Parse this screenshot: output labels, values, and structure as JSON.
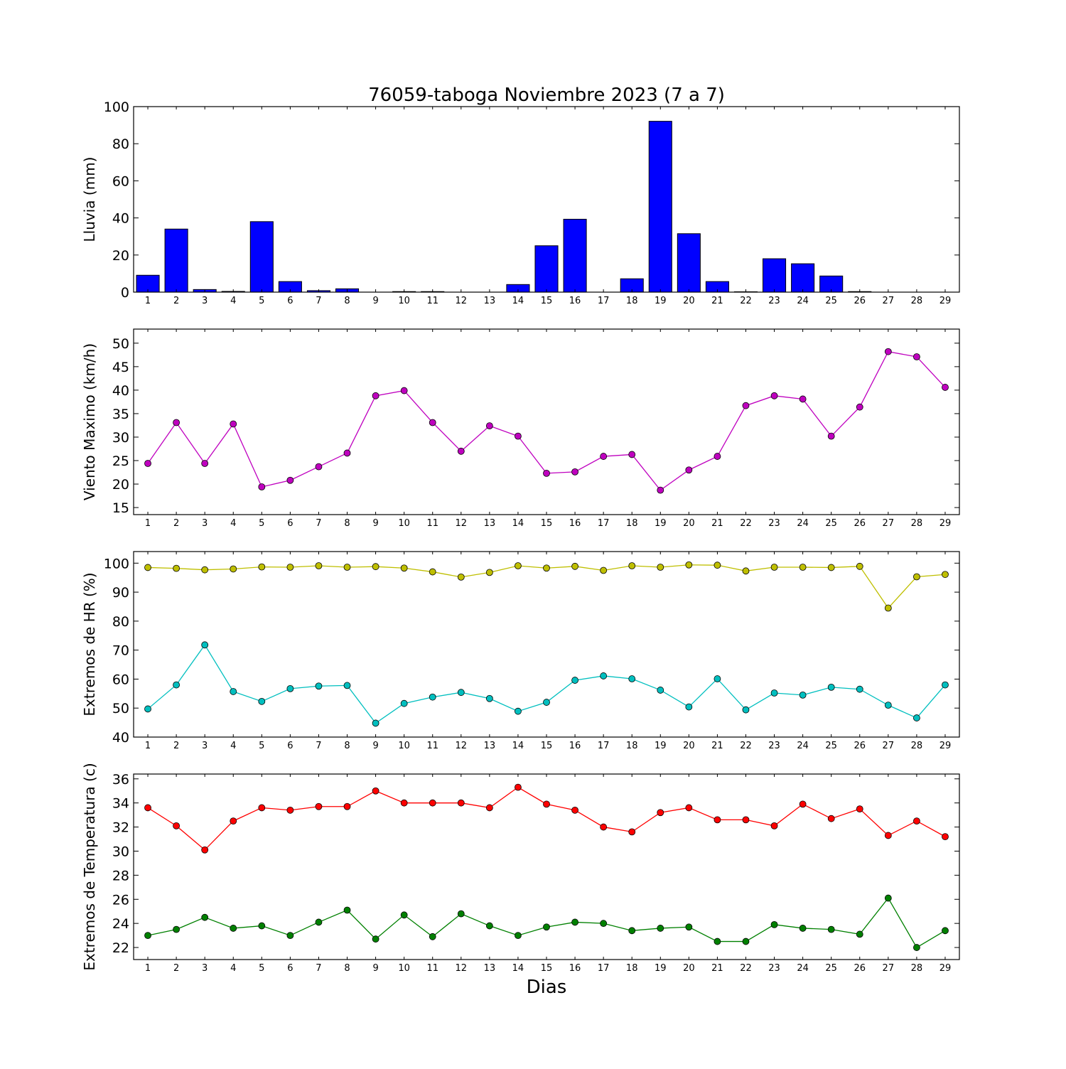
{
  "title": "76059-taboga Noviembre 2023  (7 a 7)",
  "xlabel": "Dias",
  "chart_data": [
    {
      "type": "bar",
      "ylabel": "Lluvia (mm)",
      "ylim": [
        0,
        100
      ],
      "yticks": [
        0,
        20,
        40,
        60,
        80,
        100
      ],
      "categories": [
        1,
        2,
        3,
        4,
        5,
        6,
        7,
        8,
        9,
        10,
        11,
        12,
        13,
        14,
        15,
        16,
        17,
        18,
        19,
        20,
        21,
        22,
        23,
        24,
        25,
        26,
        27,
        28,
        29
      ],
      "series": [
        {
          "color": "#0000ff",
          "values": [
            9.1,
            34,
            1.4,
            0.4,
            38,
            5.7,
            0.8,
            1.8,
            0,
            0.3,
            0.3,
            0,
            0,
            4.1,
            25,
            39.3,
            0,
            7.2,
            92.1,
            31.5,
            5.7,
            0.2,
            18,
            15.3,
            8.7,
            0.3,
            0,
            0,
            0
          ]
        }
      ]
    },
    {
      "type": "line",
      "ylabel": "Viento Maximo (km/h)",
      "ylim": [
        13.5,
        53
      ],
      "yticks": [
        15,
        20,
        25,
        30,
        35,
        40,
        45,
        50
      ],
      "categories": [
        1,
        2,
        3,
        4,
        5,
        6,
        7,
        8,
        9,
        10,
        11,
        12,
        13,
        14,
        15,
        16,
        17,
        18,
        19,
        20,
        21,
        22,
        23,
        24,
        25,
        26,
        27,
        28,
        29
      ],
      "series": [
        {
          "color": "#bf00bf",
          "values": [
            24.4,
            33.1,
            24.4,
            32.8,
            19.4,
            20.8,
            23.7,
            26.6,
            38.8,
            39.9,
            33.1,
            27.0,
            32.4,
            30.2,
            22.3,
            22.6,
            25.9,
            26.3,
            18.7,
            23.0,
            25.9,
            36.7,
            38.8,
            38.1,
            30.2,
            36.4,
            48.2,
            47.1,
            40.6
          ]
        }
      ]
    },
    {
      "type": "line",
      "ylabel": "Extremos de HR (%)",
      "ylim": [
        40,
        104
      ],
      "yticks": [
        40,
        50,
        60,
        70,
        80,
        90,
        100
      ],
      "categories": [
        1,
        2,
        3,
        4,
        5,
        6,
        7,
        8,
        9,
        10,
        11,
        12,
        13,
        14,
        15,
        16,
        17,
        18,
        19,
        20,
        21,
        22,
        23,
        24,
        25,
        26,
        27,
        28,
        29
      ],
      "series": [
        {
          "color": "#bfbf00",
          "values": [
            98.5,
            98.2,
            97.7,
            98.0,
            98.7,
            98.6,
            99.1,
            98.6,
            98.8,
            98.3,
            97.0,
            95.2,
            96.8,
            99.1,
            98.3,
            98.9,
            97.5,
            99.1,
            98.6,
            99.4,
            99.3,
            97.3,
            98.6,
            98.6,
            98.5,
            98.9,
            84.5,
            95.3,
            96.1
          ]
        },
        {
          "color": "#00bfbf",
          "values": [
            49.7,
            58.0,
            71.8,
            55.7,
            52.3,
            56.7,
            57.6,
            57.8,
            44.8,
            51.6,
            53.8,
            55.4,
            53.3,
            48.9,
            52.0,
            59.6,
            61.1,
            60.1,
            56.2,
            50.4,
            60.1,
            49.4,
            55.2,
            54.5,
            57.2,
            56.5,
            51.0,
            46.6,
            58.0
          ]
        }
      ]
    },
    {
      "type": "line",
      "ylabel": "Extremos de Temperatura (c)",
      "ylim": [
        21,
        36.4
      ],
      "yticks": [
        22,
        24,
        26,
        28,
        30,
        32,
        34,
        36
      ],
      "categories": [
        1,
        2,
        3,
        4,
        5,
        6,
        7,
        8,
        9,
        10,
        11,
        12,
        13,
        14,
        15,
        16,
        17,
        18,
        19,
        20,
        21,
        22,
        23,
        24,
        25,
        26,
        27,
        28,
        29
      ],
      "series": [
        {
          "color": "#ff0000",
          "values": [
            33.6,
            32.1,
            30.1,
            32.5,
            33.6,
            33.4,
            33.7,
            33.7,
            35.0,
            34.0,
            34.0,
            34.0,
            33.6,
            35.3,
            33.9,
            33.4,
            32.0,
            31.6,
            33.2,
            33.6,
            32.6,
            32.6,
            32.1,
            33.9,
            32.7,
            33.5,
            31.3,
            32.5,
            31.2
          ]
        },
        {
          "color": "#008000",
          "values": [
            23.0,
            23.5,
            24.5,
            23.6,
            23.8,
            23.0,
            24.1,
            25.1,
            22.7,
            24.7,
            22.9,
            24.8,
            23.8,
            23.0,
            23.7,
            24.1,
            24.0,
            23.4,
            23.6,
            23.7,
            22.5,
            22.5,
            23.9,
            23.6,
            23.5,
            23.1,
            26.1,
            22.0,
            23.4
          ]
        }
      ]
    }
  ]
}
